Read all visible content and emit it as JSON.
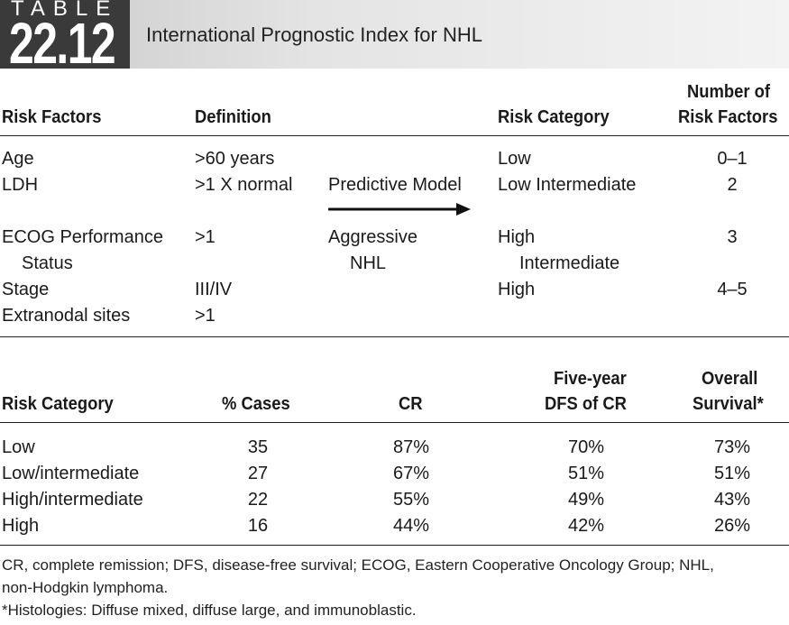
{
  "table_label": "TABLE",
  "table_number": "22.12",
  "title": "International Prognostic Index for NHL",
  "top_table": {
    "headers": {
      "risk_factors": "Risk Factors",
      "definition": "Definition",
      "risk_category": "Risk Category",
      "number_line1": "Number of",
      "number_line2": "Risk Factors"
    },
    "factors": [
      {
        "name": "Age",
        "definition": ">60 years"
      },
      {
        "name": "LDH",
        "definition": ">1 X normal"
      },
      {
        "name": "ECOG Performance",
        "name2": "Status",
        "definition": ">1"
      },
      {
        "name": "Stage",
        "definition": "III/IV"
      },
      {
        "name": "Extranodal sites",
        "definition": ">1"
      }
    ],
    "model": {
      "line1": "Predictive Model",
      "line2": "Aggressive",
      "line3": "NHL"
    },
    "categories": [
      {
        "label": "Low",
        "number": "0–1"
      },
      {
        "label": "Low Intermediate",
        "number": "2"
      },
      {
        "label": "High",
        "label2": "Intermediate",
        "number": "3"
      },
      {
        "label": "High",
        "number": "4–5"
      }
    ]
  },
  "bottom_table": {
    "headers": {
      "risk_category": "Risk Category",
      "cases": "% Cases",
      "cr": "CR",
      "dfs_line1": "Five-year",
      "dfs_line2": "DFS of CR",
      "os_line1": "Overall",
      "os_line2": "Survival*"
    },
    "rows": [
      {
        "category": "Low",
        "cases": "35",
        "cr": "87%",
        "dfs": "70%",
        "os": "73%"
      },
      {
        "category": "Low/intermediate",
        "cases": "27",
        "cr": "67%",
        "dfs": "51%",
        "os": "51%"
      },
      {
        "category": "High/intermediate",
        "cases": "22",
        "cr": "55%",
        "dfs": "49%",
        "os": "43%"
      },
      {
        "category": "High",
        "cases": "16",
        "cr": "44%",
        "dfs": "42%",
        "os": "26%"
      }
    ]
  },
  "footnotes": {
    "line1": "CR, complete remission; DFS, disease-free survival; ECOG, Eastern Cooperative Oncology Group; NHL,",
    "line2": "non-Hodgkin lymphoma.",
    "line3": "*Histologies: Diffuse mixed, diffuse large, and immunoblastic."
  }
}
